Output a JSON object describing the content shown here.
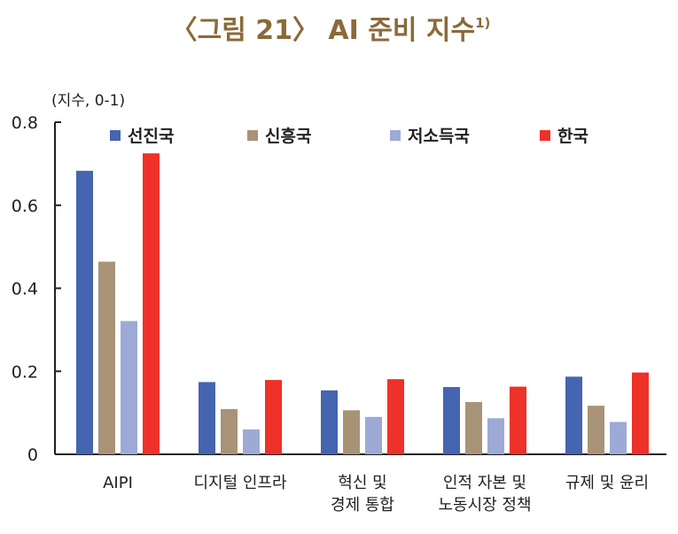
{
  "chart_data": {
    "type": "bar",
    "title": "〈그림 21〉 AI 준비 지수",
    "title_sup": "1)",
    "unit_label": "(지수, 0-1)",
    "ylim": [
      0,
      0.8
    ],
    "yticks": [
      "0",
      "0.2",
      "0.4",
      "0.6",
      "0.8"
    ],
    "ytick_values": [
      0,
      0.2,
      0.4,
      0.6,
      0.8
    ],
    "legend_placement": "top",
    "categories": [
      [
        "AIPI"
      ],
      [
        "디지털 인프라"
      ],
      [
        "혁신 및",
        "경제 통합"
      ],
      [
        "인적 자본 및",
        "노동시장 정책"
      ],
      [
        "규제 및 윤리"
      ]
    ],
    "series": [
      {
        "name": "선진국",
        "color": "#4565b0",
        "values": [
          0.683,
          0.174,
          0.154,
          0.162,
          0.187
        ]
      },
      {
        "name": "신흥국",
        "color": "#a89377",
        "values": [
          0.464,
          0.109,
          0.106,
          0.126,
          0.117
        ]
      },
      {
        "name": "저소득국",
        "color": "#9daad6",
        "values": [
          0.321,
          0.06,
          0.09,
          0.087,
          0.078
        ]
      },
      {
        "name": "한국",
        "color": "#ee3129",
        "values": [
          0.725,
          0.179,
          0.181,
          0.163,
          0.197
        ]
      }
    ]
  }
}
